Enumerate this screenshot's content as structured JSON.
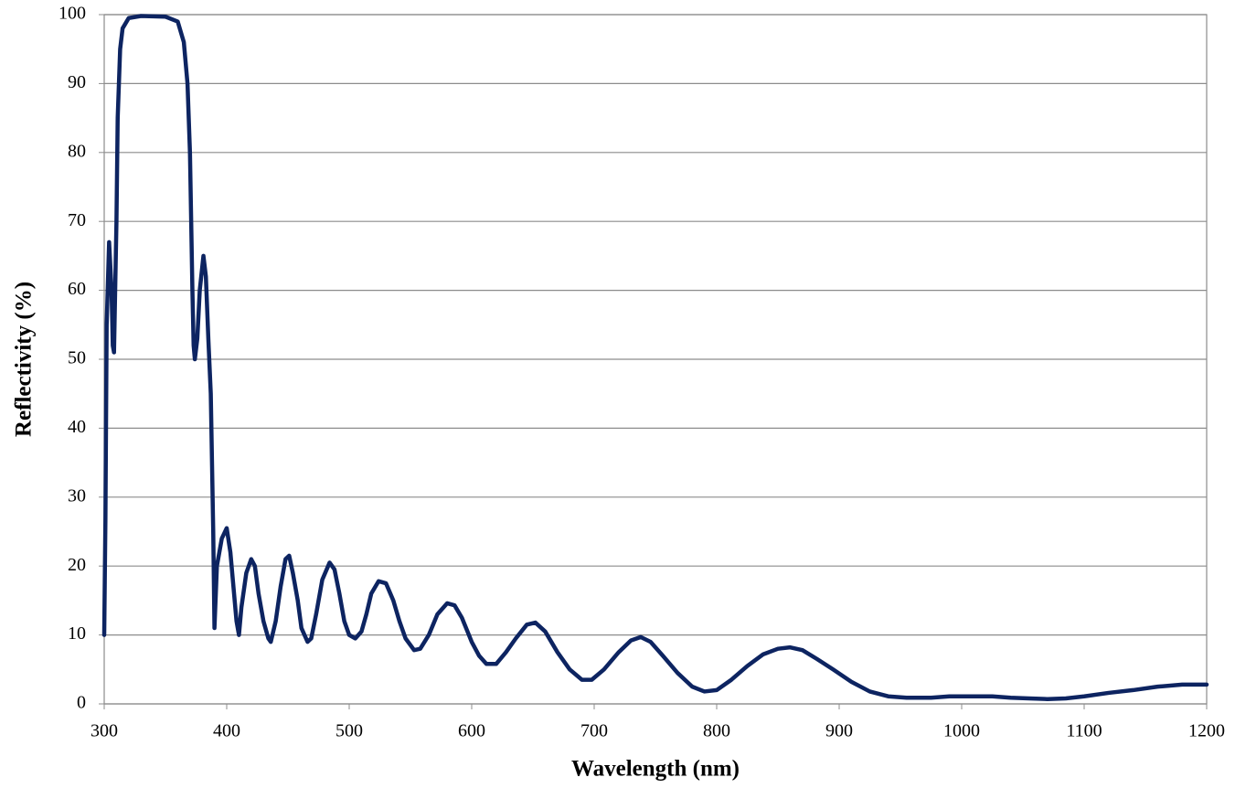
{
  "chart_data": {
    "type": "line",
    "xlabel": "Wavelength (nm)",
    "ylabel": "Reflectivity (%)",
    "x": [
      300,
      301,
      302,
      304,
      306,
      307,
      308,
      310,
      311,
      313,
      315,
      320,
      330,
      350,
      360,
      365,
      368,
      370,
      371,
      372,
      373,
      374,
      376,
      378,
      381,
      383,
      385,
      387,
      389,
      390,
      392,
      396,
      400,
      403,
      405,
      408,
      410,
      412,
      416,
      420,
      423,
      426,
      430,
      434,
      436,
      440,
      444,
      448,
      451,
      454,
      458,
      461,
      466,
      469,
      473,
      478,
      484,
      488,
      492,
      496,
      500,
      505,
      510,
      514,
      518,
      524,
      530,
      536,
      541,
      546,
      553,
      558,
      565,
      572,
      580,
      586,
      592,
      600,
      606,
      612,
      620,
      628,
      636,
      645,
      652,
      660,
      670,
      680,
      690,
      698,
      708,
      720,
      730,
      738,
      746,
      756,
      768,
      780,
      790,
      800,
      812,
      825,
      838,
      850,
      860,
      870,
      882,
      895,
      910,
      925,
      940,
      955,
      975,
      990,
      1010,
      1025,
      1040,
      1055,
      1070,
      1085,
      1100,
      1120,
      1140,
      1160,
      1180,
      1200
    ],
    "series": [
      {
        "name": "Reflectivity",
        "color": "#0d2461",
        "values": [
          10,
          27,
          55,
          67,
          60,
          52,
          51,
          70,
          85,
          95,
          98,
          99.5,
          99.8,
          99.7,
          99,
          96,
          90,
          80,
          70,
          60,
          52,
          50,
          53,
          60,
          65,
          62,
          53,
          45,
          25,
          11,
          20,
          24,
          25.5,
          22,
          18,
          12,
          10,
          14,
          19,
          21,
          20,
          16,
          12,
          9.5,
          9,
          12,
          17,
          21,
          21.5,
          19,
          15,
          11,
          9,
          9.5,
          13,
          18,
          20.5,
          19.5,
          16,
          12,
          10,
          9.5,
          10.5,
          13,
          16,
          17.8,
          17.5,
          15,
          12,
          9.5,
          7.8,
          8,
          10,
          13,
          14.6,
          14.3,
          12.5,
          9,
          7,
          5.8,
          5.8,
          7.5,
          9.5,
          11.5,
          11.8,
          10.5,
          7.5,
          5,
          3.5,
          3.5,
          5,
          7.5,
          9.2,
          9.7,
          9,
          7,
          4.5,
          2.5,
          1.8,
          2,
          3.5,
          5.5,
          7.2,
          8,
          8.2,
          7.8,
          6.5,
          5,
          3.2,
          1.8,
          1.1,
          0.9,
          0.9,
          1.1,
          1.1,
          1.1,
          0.9,
          0.8,
          0.7,
          0.8,
          1.1,
          1.6,
          2,
          2.5,
          2.8,
          2.8
        ]
      }
    ],
    "xlim": [
      300,
      1200
    ],
    "xticks": [
      300,
      400,
      500,
      600,
      700,
      800,
      900,
      1000,
      1100,
      1200
    ],
    "ylim": [
      0,
      100
    ],
    "yticks": [
      0,
      10,
      20,
      30,
      40,
      50,
      60,
      70,
      80,
      90,
      100
    ],
    "grid": true
  }
}
